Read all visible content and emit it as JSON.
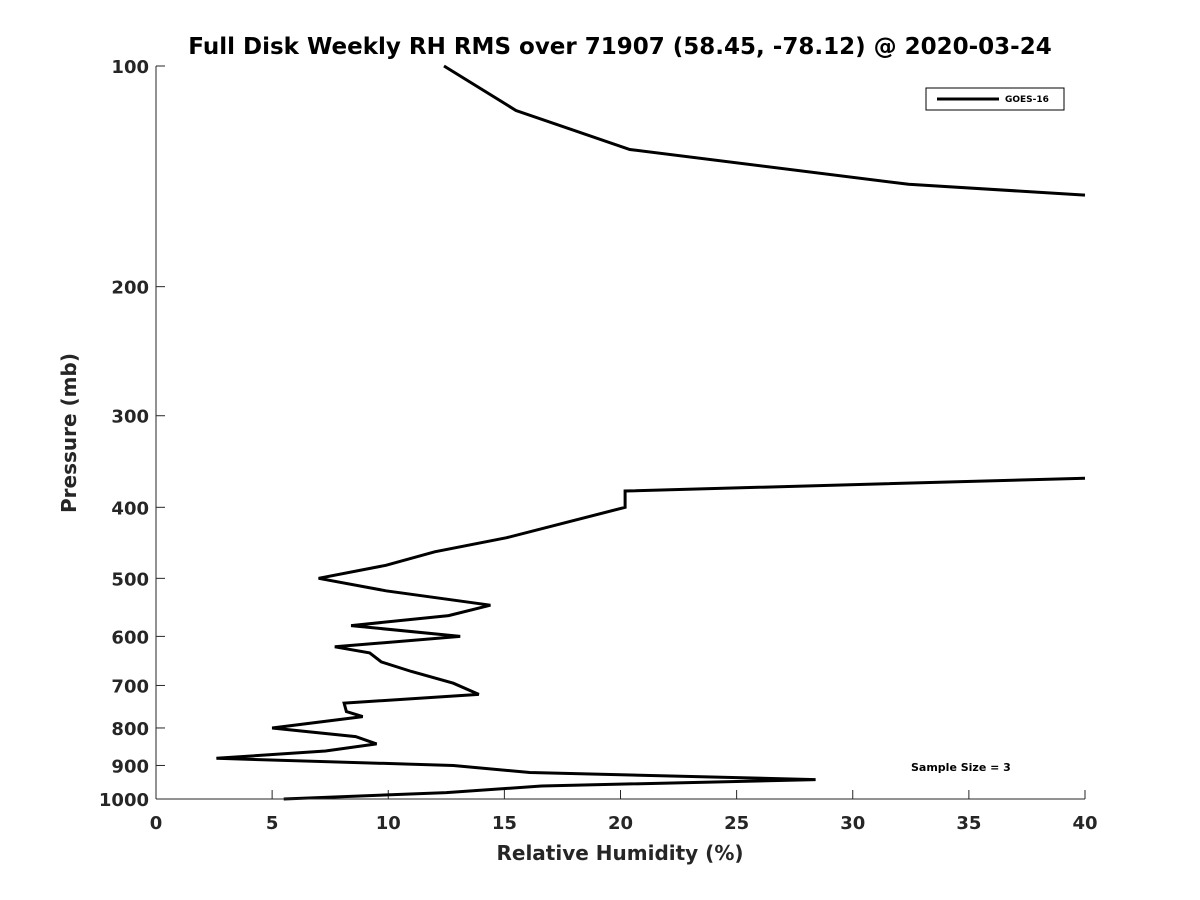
{
  "chart_data": {
    "type": "line",
    "title": "Full Disk Weekly RH RMS over 71907 (58.45, -78.12) @ 2020-03-24",
    "xlabel": "Relative Humidity (%)",
    "ylabel": "Pressure (mb)",
    "xlim": [
      0,
      40
    ],
    "ylim": [
      100,
      1000
    ],
    "y_scale": "log",
    "y_reversed": true,
    "x_ticks": [
      "0",
      "5",
      "10",
      "15",
      "20",
      "25",
      "30",
      "35",
      "40"
    ],
    "y_ticks": [
      "100",
      "200",
      "300",
      "400",
      "500",
      "600",
      "700",
      "800",
      "900",
      "1000"
    ],
    "grid": false,
    "legend": {
      "position": "top-right",
      "entries": [
        "GOES-16"
      ]
    },
    "annotation": "Sample Size = 3",
    "series": [
      {
        "name": "GOES-16",
        "color": "#000000",
        "segments": [
          [
            [
              12.4,
              100
            ],
            [
              15.5,
              115
            ],
            [
              20.4,
              130
            ],
            [
              32.4,
              145
            ],
            [
              40,
              150
            ]
          ],
          [
            [
              40,
              365
            ],
            [
              20.2,
              380
            ],
            [
              20.2,
              400
            ],
            [
              15.1,
              440
            ],
            [
              12.0,
              460
            ],
            [
              9.9,
              480
            ],
            [
              7.0,
              500
            ],
            [
              9.9,
              520
            ],
            [
              14.4,
              544
            ],
            [
              12.6,
              562
            ],
            [
              8.4,
              580
            ],
            [
              13.1,
              600
            ],
            [
              7.7,
              620
            ],
            [
              9.2,
              632
            ],
            [
              9.7,
              650
            ],
            [
              11.0,
              670
            ],
            [
              12.8,
              695
            ],
            [
              13.9,
              720
            ],
            [
              8.1,
              740
            ],
            [
              8.2,
              760
            ],
            [
              8.9,
              772
            ],
            [
              5.0,
              800
            ],
            [
              8.6,
              822
            ],
            [
              9.5,
              841
            ],
            [
              7.3,
              860
            ],
            [
              2.6,
              880
            ],
            [
              12.8,
              900
            ],
            [
              16.1,
              920
            ],
            [
              28.4,
              941
            ],
            [
              16.6,
              960
            ],
            [
              12.5,
              980
            ],
            [
              5.5,
              1000
            ]
          ]
        ]
      }
    ]
  }
}
